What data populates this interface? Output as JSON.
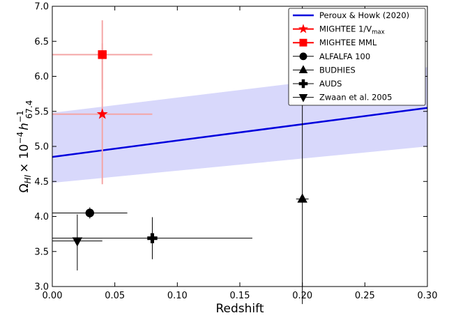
{
  "chart_data": {
    "type": "scatter",
    "title": "",
    "xlabel": "Redshift",
    "ylabel": "Ω_HI × 10^−4 h^−1_67.4",
    "ylabel_parts": {
      "omega": "Ω",
      "omega_sub": "HI",
      "times": "× 10",
      "exp": "−4",
      "h": "h",
      "h_sup": "−1",
      "h_sub": "67.4"
    },
    "xlim": [
      0.0,
      0.3
    ],
    "ylim": [
      3.0,
      7.0
    ],
    "xticks": [
      "0.00",
      "0.05",
      "0.10",
      "0.15",
      "0.20",
      "0.25",
      "0.30"
    ],
    "xtick_values": [
      0.0,
      0.05,
      0.1,
      0.15,
      0.2,
      0.25,
      0.3
    ],
    "yticks": [
      "3.0",
      "3.5",
      "4.0",
      "4.5",
      "5.0",
      "5.5",
      "6.0",
      "6.5",
      "7.0"
    ],
    "ytick_values": [
      3.0,
      3.5,
      4.0,
      4.5,
      5.0,
      5.5,
      6.0,
      6.5,
      7.0
    ],
    "grid": false,
    "legend_position": "top-right",
    "fit": {
      "name": "Peroux & Howk (2020)",
      "color": "#0000dd",
      "band_color": "#d8d8fb",
      "x": [
        0.0,
        0.3
      ],
      "y": [
        4.85,
        5.55
      ],
      "lower": [
        4.48,
        5.0
      ],
      "upper": [
        5.48,
        6.13
      ]
    },
    "series": [
      {
        "name": "MIGHTEE 1/V",
        "name_sub": "max",
        "marker": "star",
        "color": "#ff0000",
        "err_color": "#f4a6a6",
        "x": 0.04,
        "y": 5.46,
        "xerr": [
          0.04,
          0.04
        ],
        "yerr": [
          1.0,
          1.34
        ]
      },
      {
        "name": "MIGHTEE MML",
        "marker": "square",
        "color": "#ff0000",
        "err_color": "#f4a6a6",
        "x": 0.04,
        "y": 6.31,
        "xerr": [
          0.04,
          0.04
        ],
        "yerr": [
          0.5,
          0.16
        ]
      },
      {
        "name": "ALFALFA 100",
        "marker": "circle",
        "color": "#000000",
        "err_color": "#000000",
        "x": 0.03,
        "y": 4.05,
        "xerr": [
          0.03,
          0.03
        ],
        "yerr": [
          0.08,
          0.08
        ]
      },
      {
        "name": "BUDHIES",
        "marker": "triangle-up",
        "color": "#000000",
        "err_color": "#000000",
        "x": 0.2,
        "y": 4.25,
        "xerr": [
          0.005,
          0.005
        ],
        "yerr": [
          1.5,
          2.3
        ]
      },
      {
        "name": "AUDS",
        "marker": "plus",
        "color": "#000000",
        "err_color": "#000000",
        "x": 0.08,
        "y": 3.69,
        "xerr": [
          0.08,
          0.08
        ],
        "yerr": [
          0.3,
          0.3
        ]
      },
      {
        "name": "Zwaan et al. 2005",
        "marker": "triangle-down",
        "color": "#000000",
        "err_color": "#000000",
        "x": 0.02,
        "y": 3.65,
        "xerr": [
          0.02,
          0.02
        ],
        "yerr": [
          0.42,
          0.38
        ]
      }
    ]
  }
}
